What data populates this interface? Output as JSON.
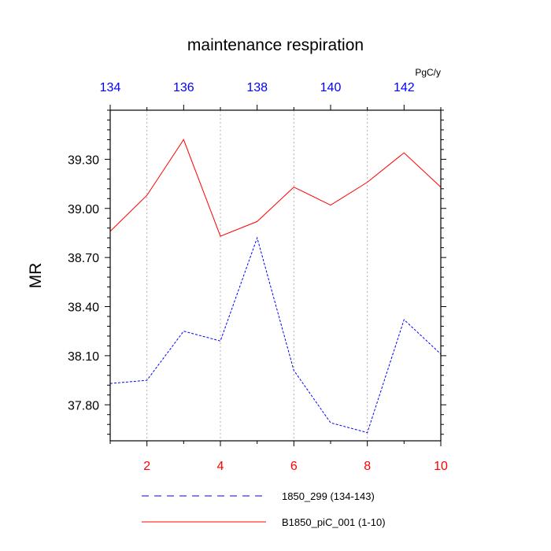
{
  "chart_data": {
    "type": "line",
    "title": "maintenance respiration",
    "ylabel": "MR",
    "units": "PgC/y",
    "bottom_axis": {
      "range": [
        1,
        10
      ],
      "ticks": [
        2,
        4,
        6,
        8,
        10
      ],
      "tick_color": "#ff0000"
    },
    "top_axis": {
      "range": [
        134,
        143
      ],
      "ticks": [
        134,
        136,
        138,
        140,
        142
      ],
      "tick_color": "#0000ff"
    },
    "y_axis": {
      "range": [
        37.58,
        39.6
      ],
      "ticks": [
        37.8,
        38.1,
        38.4,
        38.7,
        39.0,
        39.3
      ],
      "tick_labels": [
        "37.80",
        "38.10",
        "38.40",
        "38.70",
        "39.00",
        "39.30"
      ]
    },
    "grid": "vertical-dotted",
    "series": [
      {
        "name": "1850_299 (134-143)",
        "color": "#0000ff",
        "style": "dashed",
        "axis": "top",
        "x": [
          134,
          135,
          136,
          137,
          138,
          139,
          140,
          141,
          142,
          143
        ],
        "y": [
          37.93,
          37.95,
          38.25,
          38.19,
          38.82,
          38.01,
          37.69,
          37.63,
          38.32,
          38.11
        ]
      },
      {
        "name": "B1850_piC_001 (1-10)",
        "color": "#ff0000",
        "style": "solid",
        "axis": "bottom",
        "x": [
          1,
          2,
          3,
          4,
          5,
          6,
          7,
          8,
          9,
          10
        ],
        "y": [
          38.86,
          39.08,
          39.42,
          38.83,
          38.92,
          39.13,
          39.02,
          39.16,
          39.34,
          39.13
        ]
      }
    ]
  }
}
